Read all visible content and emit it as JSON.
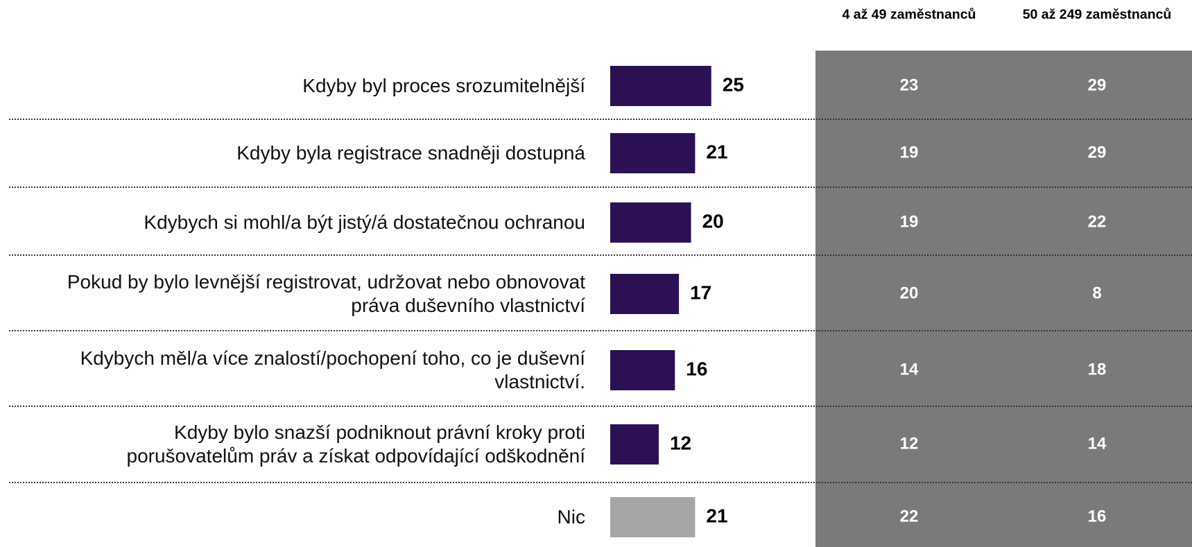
{
  "chart_data": {
    "type": "bar",
    "categories": [
      "Kdyby byl proces srozumitelnější",
      "Kdyby byla registrace snadněji dostupná",
      "Kdybych si mohl/a být jistý/á dostatečnou ochranou",
      "Pokud by bylo levnější registrovat, udržovat nebo obnovovat práva duševního vlastnictví",
      "Kdybych měl/a více znalostí/pochopení toho, co je duševní vlastnictví.",
      "Kdyby bylo snazší podniknout právní kroky proti porušovatelům práv a získat odpovídající odškodnění",
      "Nic"
    ],
    "values": [
      25,
      21,
      20,
      17,
      16,
      12,
      21
    ],
    "colors": [
      "#2b1153",
      "#2b1153",
      "#2b1153",
      "#2b1153",
      "#2b1153",
      "#2b1153",
      "#a6a6a6"
    ],
    "table": {
      "columns": [
        "4 až 49 zaměstnanců",
        "50 až 249 zaměstnanců"
      ],
      "rows": [
        [
          23,
          29
        ],
        [
          19,
          29
        ],
        [
          19,
          22
        ],
        [
          20,
          8
        ],
        [
          14,
          18
        ],
        [
          12,
          14
        ],
        [
          22,
          16
        ]
      ],
      "color": "#7a7a7a"
    }
  }
}
